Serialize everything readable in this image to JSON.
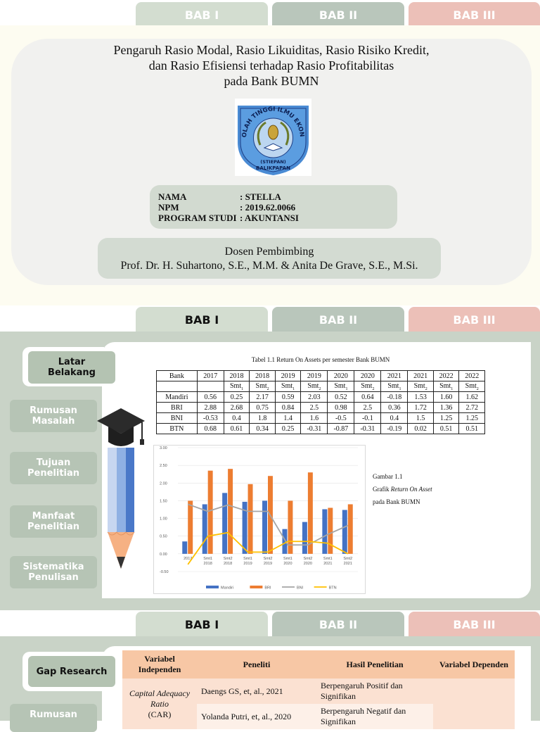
{
  "tabs": [
    "BAB I",
    "BAB II",
    "BAB III"
  ],
  "slide1": {
    "title_lines": [
      "Pengaruh Rasio Modal, Rasio Likuiditas, Rasio Risiko Kredit,",
      "dan Rasio Efisiensi terhadap Rasio Profitabilitas",
      "pada Bank BUMN"
    ],
    "logo": {
      "arc_text": "SEKOLAH TINGGI ILMU EKONOMI",
      "abbr": "(STIEPAN)",
      "city": "BALIKPAPAN",
      "colors": {
        "ring": "#3f7fc9",
        "inner": "#1d3f86",
        "gold": "#c9a43a"
      }
    },
    "info": {
      "name_label": "NAMA",
      "name_value": ": STELLA",
      "npm_label": "NPM",
      "npm_value": ": 2019.62.0066",
      "prodi_label": "PROGRAM STUDI",
      "prodi_value": ": AKUNTANSI"
    },
    "dosen_label": "Dosen Pembimbing",
    "dosen_names": "Prof. Dr. H. Suhartono, S.E., M.M. & Anita De Grave, S.E., M.Si."
  },
  "slide2": {
    "sidebar": [
      "Latar Belakang",
      "Rumusan Masalah",
      "Tujuan Penelitian",
      "Manfaat Penelitian",
      "Sistematika Penulisan"
    ],
    "table_caption": "Tabel 1.1 Return On Assets per semester Bank BUMN",
    "table_header": [
      "Bank",
      "2017",
      "2018",
      "2018",
      "2019",
      "2019",
      "2020",
      "2020",
      "2021",
      "2021",
      "2022",
      "2022"
    ],
    "table_sub": [
      "",
      "",
      "Smt",
      "Smt",
      "Smt",
      "Smt",
      "Smt",
      "Smt",
      "Smt",
      "Smt",
      "Smt",
      "Smt"
    ],
    "table_sub_idx": [
      "",
      "",
      "1",
      "2",
      "1",
      "2",
      "1",
      "2",
      "1",
      "2",
      "1",
      "2"
    ],
    "table_rows": [
      [
        "Mandiri",
        "0.56",
        "0.25",
        "2.17",
        "0.59",
        "2.03",
        "0.52",
        "0.64",
        "-0.18",
        "1.53",
        "1.60",
        "1.62"
      ],
      [
        "BRI",
        "2.88",
        "2.68",
        "0.75",
        "0.84",
        "2.5",
        "0.98",
        "2.5",
        "0.36",
        "1.72",
        "1.36",
        "2.72"
      ],
      [
        "BNI",
        "-0.53",
        "0.4",
        "1.8",
        "1.4",
        "1.6",
        "-0.5",
        "-0.1",
        "0.4",
        "1.5",
        "1.25",
        "1.25"
      ],
      [
        "BTN",
        "0.68",
        "0.61",
        "0.34",
        "0.25",
        "-0.31",
        "-0.87",
        "-0.31",
        "-0.19",
        "0.02",
        "0.51",
        "0.51"
      ]
    ],
    "figure_caption": [
      "Gambar 1.1",
      "Grafik ",
      "Return On Asset",
      "pada Bank BUMN"
    ]
  },
  "chart_data": {
    "type": "bar",
    "categories": [
      "2017",
      "Smt1 2018",
      "Smt2 2018",
      "Smt1 2019",
      "Smt2 2019",
      "Smt1 2020",
      "Smt2 2020",
      "Smt1 2021",
      "Smt2 2021"
    ],
    "category_lines": [
      [
        "2017"
      ],
      [
        "Smt1",
        "2018"
      ],
      [
        "Smt2",
        "2018"
      ],
      [
        "Smt1",
        "2019"
      ],
      [
        "Smt2",
        "2019"
      ],
      [
        "Smt1",
        "2020"
      ],
      [
        "Smt2",
        "2020"
      ],
      [
        "Smt1",
        "2021"
      ],
      [
        "Smt2",
        "2021"
      ]
    ],
    "series": [
      {
        "name": "Mandiri",
        "kind": "bar",
        "color": "#4472c4",
        "values": [
          0.35,
          1.4,
          1.72,
          1.47,
          1.5,
          0.7,
          0.9,
          1.26,
          1.24
        ]
      },
      {
        "name": "BRI",
        "kind": "bar",
        "color": "#ed7d31",
        "values": [
          1.5,
          2.35,
          2.4,
          1.97,
          2.2,
          1.5,
          2.3,
          1.3,
          1.4
        ]
      },
      {
        "name": "BNI",
        "kind": "line",
        "color": "#a5a5a5",
        "values": [
          1.4,
          1.2,
          1.38,
          1.2,
          1.2,
          0.25,
          0.25,
          0.55,
          0.8
        ]
      },
      {
        "name": "BTN",
        "kind": "line",
        "color": "#ffc000",
        "values": [
          -0.3,
          0.5,
          0.6,
          0.05,
          0.05,
          0.35,
          0.35,
          0.3,
          0.0
        ]
      }
    ],
    "yticks": [
      "3.00",
      "2.50",
      "2.00",
      "1.50",
      "1.00",
      "0.50",
      "0.00",
      "-0.50"
    ],
    "ylim": [
      -0.5,
      3.0
    ],
    "grid": true,
    "legend": "bottom"
  },
  "slide3": {
    "sidebar": [
      "Gap Research",
      "Rumusan"
    ],
    "table_header": [
      "Variabel Independen",
      "Peneliti",
      "Hasil Penelitian",
      "Variabel Dependen"
    ],
    "variable_name": "Capital Adequacy Ratio",
    "variable_abbr": "(CAR)",
    "rows": [
      {
        "peneliti": "Daengs GS, et, al., 2021",
        "hasil": "Berpengaruh Positif dan Signifikan"
      },
      {
        "peneliti": "Yolanda Putri, et, al., 2020",
        "hasil": "Berpengaruh Negatif dan Signifikan"
      }
    ],
    "colors": {
      "header": "#f7c7a5",
      "row": "#fbe1d2",
      "row_alt": "#fdf0e8"
    }
  }
}
